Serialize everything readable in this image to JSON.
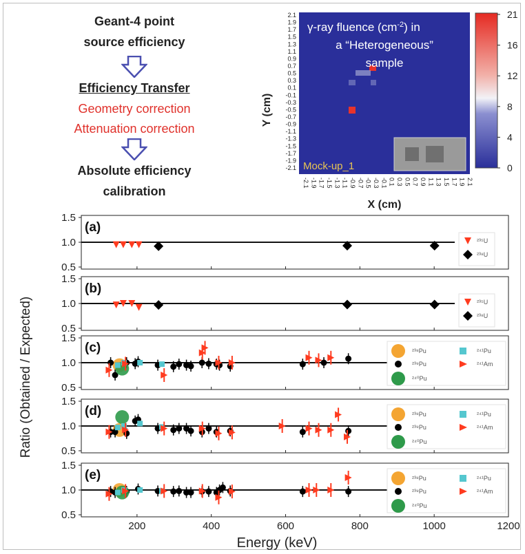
{
  "flowchart": {
    "step1_line1": "Geant-4 point",
    "step1_line2": "source efficiency",
    "step2": "Efficiency Transfer",
    "correction1": "Geometry correction",
    "correction2": "Attenuation correction",
    "step3_line1": "Absolute efficiency",
    "step3_line2": "calibration",
    "arrow_icon": "hollow-down-arrow"
  },
  "heatmap": {
    "title_line1": "γ-ray fluence (cm",
    "title_sup": "-2",
    "title_line1_end": ") in",
    "title_line2": "a “Heterogeneous”",
    "title_line3": "sample",
    "ylabel": "Y (cm)",
    "xlabel": "X (cm)",
    "sample_label": "Mock-up_1",
    "y_ticks": [
      "2.1",
      "1.9",
      "1.7",
      "1.5",
      "1.3",
      "1.1",
      "0.9",
      "0.7",
      "0.5",
      "0.3",
      "0.1",
      "-0.1",
      "-0.3",
      "-0.5",
      "-0.7",
      "-0.9",
      "-1.1",
      "-1.3",
      "-1.5",
      "-1.7",
      "-1.9",
      "-2.1"
    ],
    "colorbar_ticks": [
      "21",
      "16",
      "12",
      "8",
      "4",
      "0"
    ],
    "colors": {
      "background": "#2a2f9a",
      "hot": "#e8332b",
      "warm": "#b0b4d8"
    }
  },
  "chart_data": {
    "type": "scatter",
    "ylabel": "Ratio (Obtained / Expected)",
    "xlabel": "Energy (keV)",
    "xlim": [
      50,
      1200
    ],
    "x_ticks": [
      200,
      400,
      600,
      800,
      1000,
      1200
    ],
    "ylim": [
      0.5,
      1.5
    ],
    "y_ticks": [
      "1.5",
      "1.0",
      "0.5"
    ],
    "reference_line": 1.0,
    "panels": [
      {
        "label": "(a)",
        "series": [
          {
            "name": "235U",
            "legend": "²³⁵U",
            "marker": "triangle-down",
            "color": "#ff3b1f",
            "points": [
              [
                144,
                0.95
              ],
              [
                163,
                0.95
              ],
              [
                186,
                0.95
              ],
              [
                205,
                0.95
              ]
            ]
          },
          {
            "name": "238U",
            "legend": "²³⁸U",
            "marker": "diamond",
            "color": "#000000",
            "points": [
              [
                258,
                0.92
              ],
              [
                766,
                0.93
              ],
              [
                1001,
                0.93
              ]
            ]
          }
        ]
      },
      {
        "label": "(b)",
        "series": [
          {
            "name": "235U",
            "legend": "²³⁵U",
            "marker": "triangle-down",
            "color": "#ff3b1f",
            "points": [
              [
                144,
                0.97
              ],
              [
                163,
                1.0
              ],
              [
                186,
                1.0
              ],
              [
                205,
                0.92
              ]
            ]
          },
          {
            "name": "238U",
            "legend": "²³⁸U",
            "marker": "diamond",
            "color": "#000000",
            "points": [
              [
                258,
                0.97
              ],
              [
                766,
                0.98
              ],
              [
                1001,
                0.98
              ]
            ]
          }
        ]
      },
      {
        "label": "(c)",
        "series": [
          {
            "name": "238Pu",
            "legend": "²³⁸Pu",
            "marker": "big-circle",
            "color": "#f4a532",
            "points": [
              [
                153,
                0.95
              ]
            ]
          },
          {
            "name": "239Pu",
            "legend": "²³⁹Pu",
            "marker": "circle",
            "color": "#000000",
            "points": [
              [
                129,
                1.0
              ],
              [
                141,
                0.75
              ],
              [
                172,
                1.0
              ],
              [
                195,
                0.98
              ],
              [
                203,
                1.02
              ],
              [
                256,
                0.95
              ],
              [
                298,
                0.92
              ],
              [
                313,
                0.97
              ],
              [
                333,
                0.95
              ],
              [
                345,
                0.93
              ],
              [
                375,
                1.0
              ],
              [
                393,
                0.98
              ],
              [
                414,
                0.97
              ],
              [
                422,
                0.95
              ],
              [
                451,
                0.93
              ],
              [
                646,
                0.97
              ],
              [
                703,
                1.0
              ],
              [
                769,
                1.08
              ]
            ]
          },
          {
            "name": "240Pu",
            "legend": "²⁴⁰Pu",
            "marker": "big-circle",
            "color": "#2e9a4a",
            "points": [
              [
                160,
                0.88
              ]
            ]
          },
          {
            "name": "241Pu",
            "legend": "²⁴¹Pu",
            "marker": "square",
            "color": "#55c7cf",
            "points": [
              [
                148,
                0.95
              ],
              [
                165,
                1.0
              ],
              [
                208,
                1.0
              ],
              [
                267,
                0.97
              ]
            ]
          },
          {
            "name": "241Am",
            "legend": "²⁴¹Am",
            "marker": "triangle-right",
            "color": "#ff3b1f",
            "points": [
              [
                125,
                0.85
              ],
              [
                169,
                0.98
              ],
              [
                273,
                0.75
              ],
              [
                376,
                1.2
              ],
              [
                383,
                1.3
              ],
              [
                420,
                1.0
              ],
              [
                456,
                1.0
              ],
              [
                663,
                1.1
              ],
              [
                689,
                1.05
              ],
              [
                722,
                1.1
              ]
            ]
          }
        ]
      },
      {
        "label": "(d)",
        "series": [
          {
            "name": "238Pu",
            "legend": "²³⁸Pu",
            "marker": "big-circle",
            "color": "#f4a532",
            "points": [
              [
                153,
                0.92
              ]
            ]
          },
          {
            "name": "239Pu",
            "legend": "²³⁹Pu",
            "marker": "circle",
            "color": "#000000",
            "points": [
              [
                129,
                0.88
              ],
              [
                141,
                0.88
              ],
              [
                172,
                0.85
              ],
              [
                195,
                1.1
              ],
              [
                203,
                1.13
              ],
              [
                256,
                0.95
              ],
              [
                298,
                0.92
              ],
              [
                313,
                0.95
              ],
              [
                333,
                0.95
              ],
              [
                345,
                0.9
              ],
              [
                375,
                0.88
              ],
              [
                393,
                0.95
              ],
              [
                414,
                0.88
              ],
              [
                451,
                0.9
              ],
              [
                646,
                0.88
              ],
              [
                769,
                0.9
              ]
            ]
          },
          {
            "name": "240Pu",
            "legend": "²⁴⁰Pu",
            "marker": "big-circle",
            "color": "#2e9a4a",
            "points": [
              [
                160,
                1.18
              ]
            ]
          },
          {
            "name": "241Pu",
            "legend": "²⁴¹Pu",
            "marker": "square",
            "color": "#55c7cf",
            "points": [
              [
                148,
                0.97
              ],
              [
                165,
                1.0
              ],
              [
                208,
                1.05
              ],
              [
                267,
                0.98
              ]
            ]
          },
          {
            "name": "241Am",
            "legend": "²⁴¹Am",
            "marker": "triangle-right",
            "color": "#ff3b1f",
            "points": [
              [
                125,
                0.88
              ],
              [
                169,
                0.92
              ],
              [
                273,
                0.95
              ],
              [
                376,
                0.95
              ],
              [
                420,
                0.85
              ],
              [
                456,
                0.87
              ],
              [
                591,
                1.0
              ],
              [
                663,
                0.95
              ],
              [
                689,
                0.92
              ],
              [
                722,
                0.92
              ],
              [
                742,
                1.23
              ],
              [
                766,
                0.78
              ]
            ]
          }
        ]
      },
      {
        "label": "(e)",
        "series": [
          {
            "name": "238Pu",
            "legend": "²³⁸Pu",
            "marker": "big-circle",
            "color": "#f4a532",
            "points": [
              [
                153,
                1.0
              ]
            ]
          },
          {
            "name": "239Pu",
            "legend": "²³⁹Pu",
            "marker": "circle",
            "color": "#000000",
            "points": [
              [
                129,
                0.97
              ],
              [
                141,
                0.95
              ],
              [
                172,
                0.97
              ],
              [
                203,
                1.02
              ],
              [
                256,
                0.98
              ],
              [
                298,
                0.97
              ],
              [
                313,
                0.98
              ],
              [
                333,
                0.95
              ],
              [
                345,
                0.95
              ],
              [
                375,
                0.97
              ],
              [
                393,
                0.97
              ],
              [
                414,
                0.95
              ],
              [
                422,
                1.0
              ],
              [
                431,
                1.05
              ],
              [
                451,
                0.98
              ],
              [
                646,
                0.97
              ],
              [
                769,
                0.97
              ]
            ]
          },
          {
            "name": "240Pu",
            "legend": "²⁴⁰Pu",
            "marker": "big-circle",
            "color": "#2e9a4a",
            "points": [
              [
                160,
                0.95
              ]
            ]
          },
          {
            "name": "241Pu",
            "legend": "²⁴¹Pu",
            "marker": "square",
            "color": "#55c7cf",
            "points": [
              [
                148,
                0.95
              ],
              [
                165,
                1.0
              ],
              [
                208,
                1.0
              ],
              [
                267,
                0.98
              ]
            ]
          },
          {
            "name": "241Am",
            "legend": "²⁴¹Am",
            "marker": "triangle-right",
            "color": "#ff3b1f",
            "points": [
              [
                125,
                0.92
              ],
              [
                169,
                0.98
              ],
              [
                273,
                0.98
              ],
              [
                376,
                0.98
              ],
              [
                420,
                0.85
              ],
              [
                456,
                0.97
              ],
              [
                663,
                1.0
              ],
              [
                683,
                1.0
              ],
              [
                722,
                1.0
              ],
              [
                769,
                1.25
              ]
            ]
          }
        ]
      }
    ]
  }
}
